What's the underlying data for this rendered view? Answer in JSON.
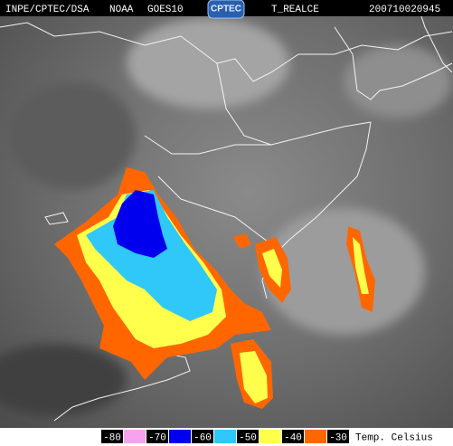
{
  "header": {
    "source": "INPE/CPTEC/DSA",
    "operator": "NOAA",
    "satellite": "GOES10",
    "logo": "CPTEC",
    "product": "T_REALCE",
    "timestamp": "200710020945"
  },
  "legend": {
    "labels": [
      "-80",
      "-70",
      "-60",
      "-50",
      "-40",
      "-30"
    ],
    "colors": [
      "#f6a2ee",
      "#0000ee",
      "#30c8f8",
      "#ffff4c",
      "#ff6600"
    ],
    "unit_label": "Temp. Celsius"
  }
}
